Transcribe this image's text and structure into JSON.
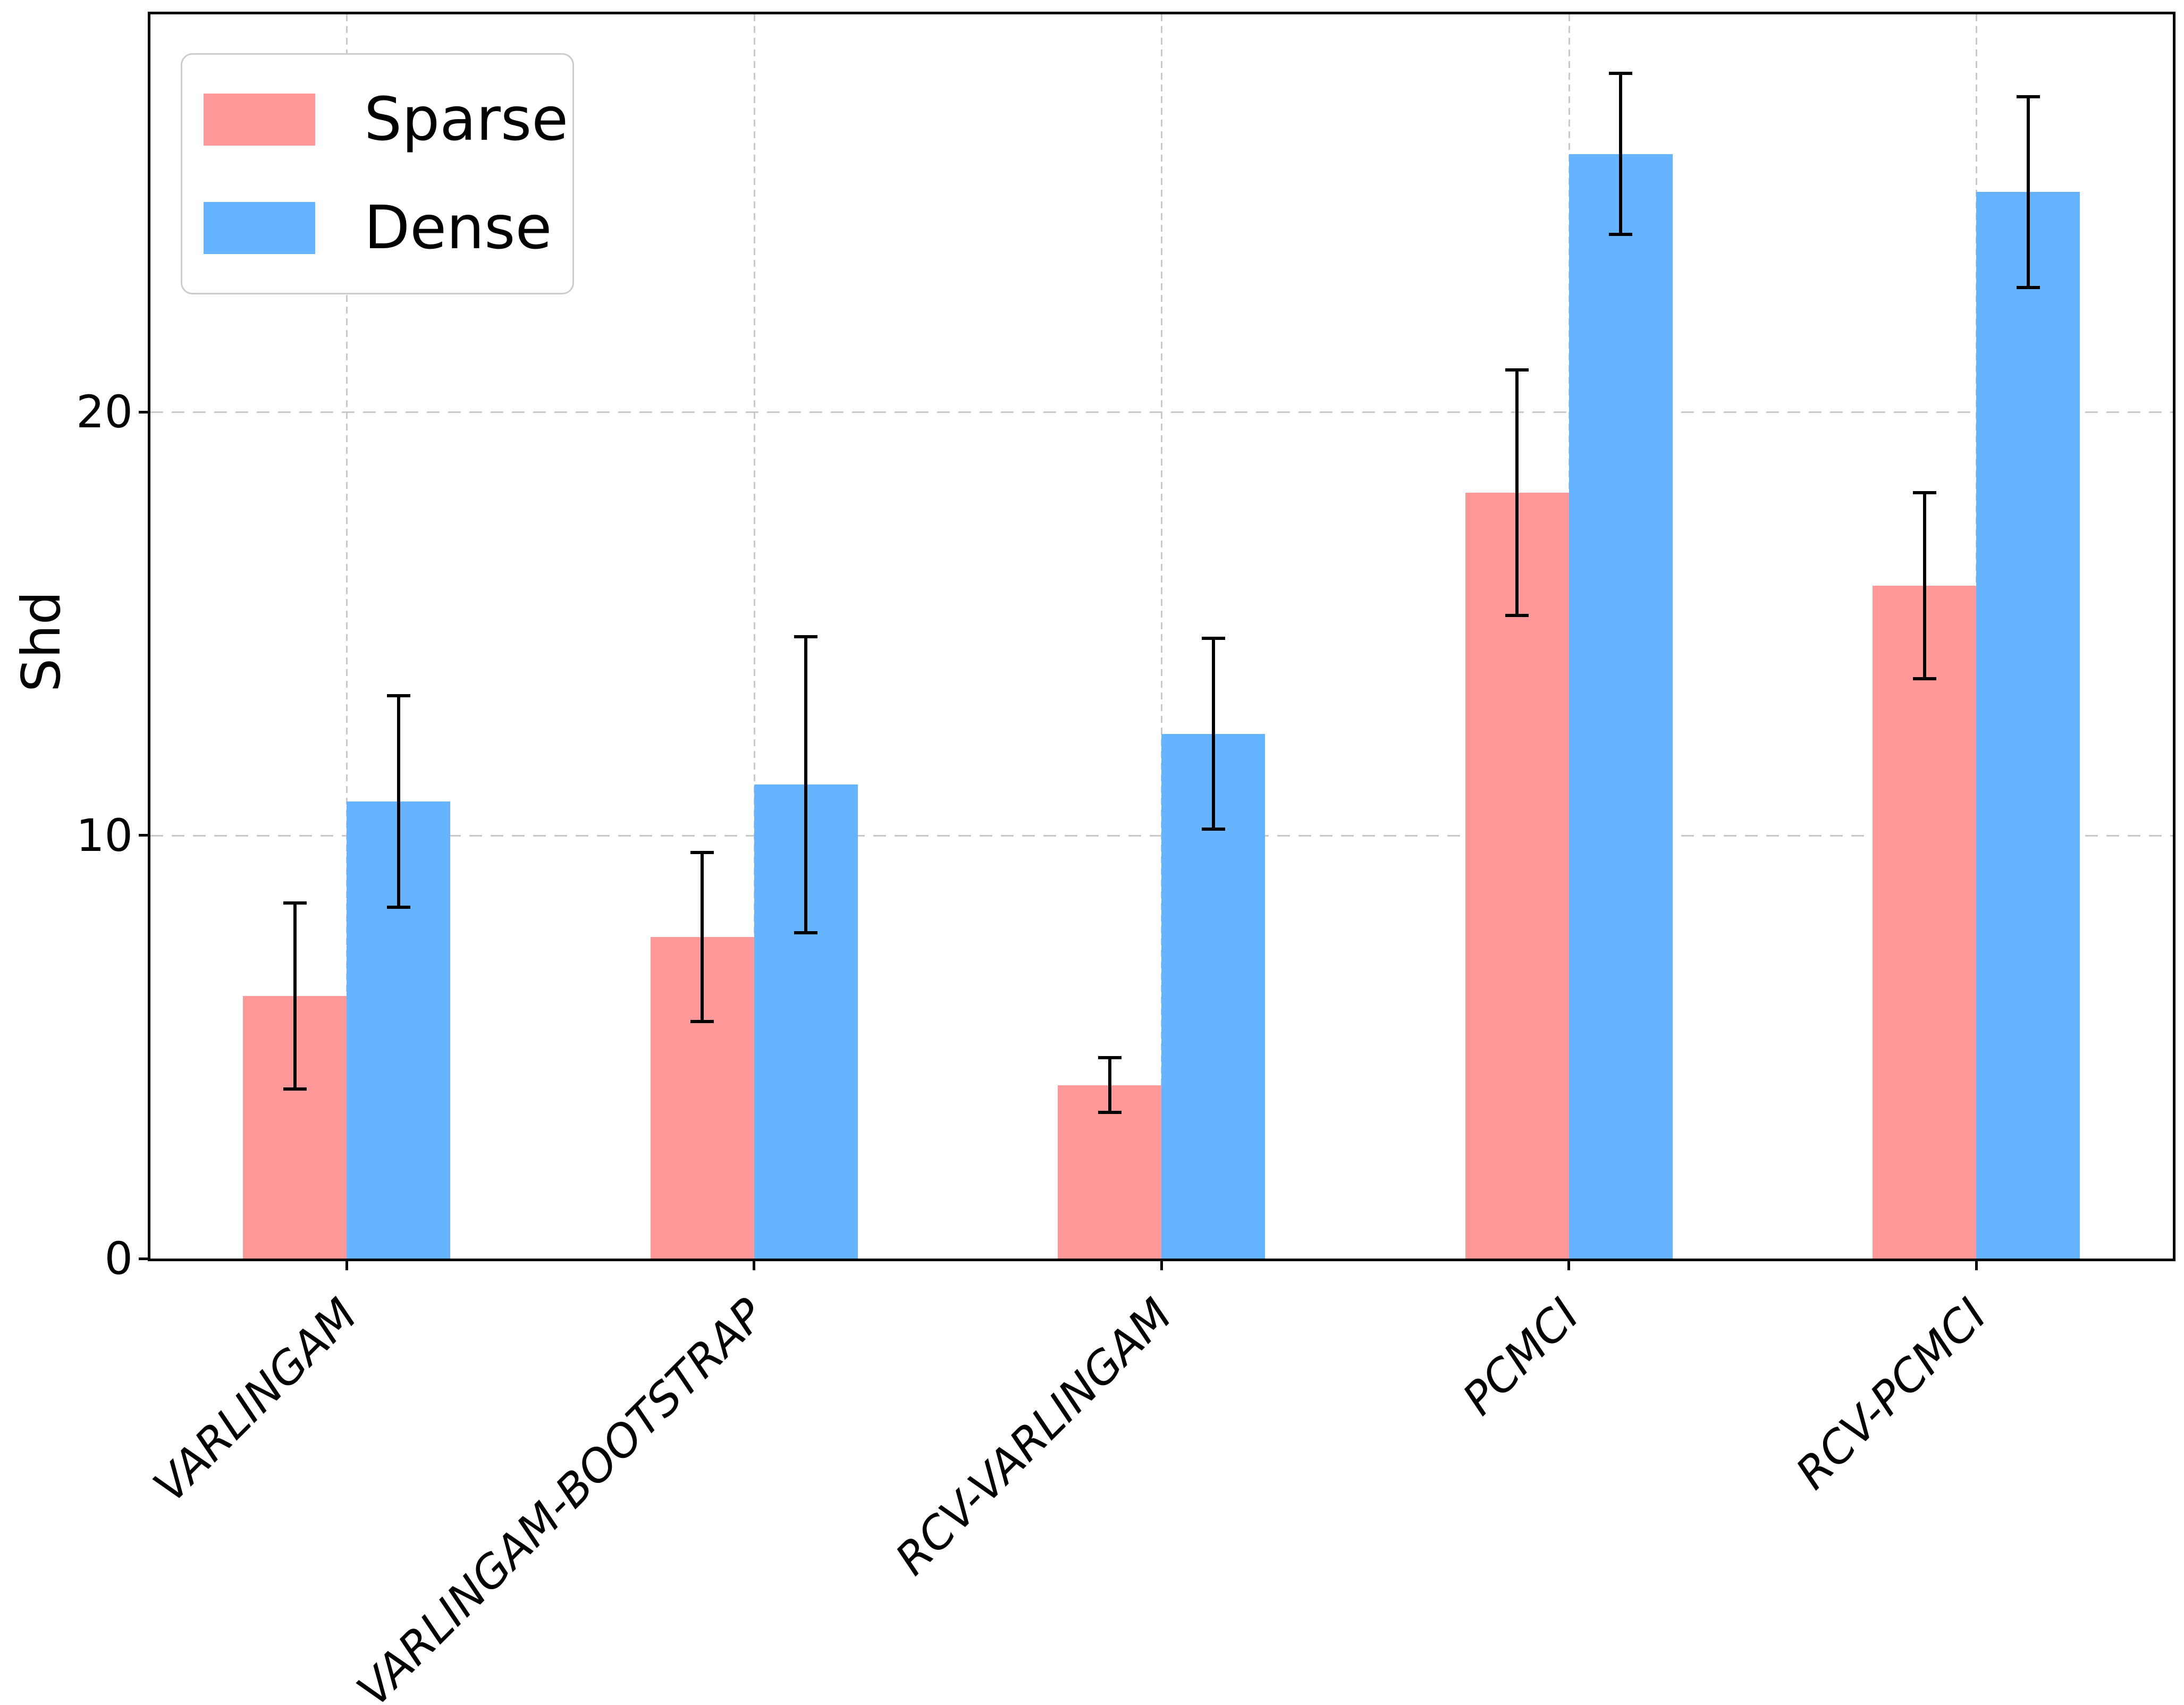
{
  "chart_data": {
    "type": "bar",
    "title": "",
    "xlabel": "",
    "ylabel": "Shd",
    "categories": [
      "VARLINGAM",
      "VARLINGAM-BOOTSTRAP",
      "RCV-VARLINGAM",
      "PCMCI",
      "RCV-PCMCI"
    ],
    "series": [
      {
        "name": "Sparse",
        "color": "#ff9999",
        "values": [
          6.2,
          7.6,
          4.1,
          18.1,
          15.9
        ],
        "errors": [
          2.2,
          2.0,
          0.65,
          2.9,
          2.2
        ]
      },
      {
        "name": "Dense",
        "color": "#66b3ff",
        "values": [
          10.8,
          11.2,
          12.4,
          26.1,
          25.2
        ],
        "errors": [
          2.5,
          3.5,
          2.25,
          1.9,
          2.25
        ]
      }
    ],
    "ylim": [
      0,
      29.4
    ],
    "yticks": [
      0,
      10,
      20
    ],
    "ytick_labels": [
      "0",
      "10",
      "20"
    ],
    "grid": true,
    "grid_style": "dashed",
    "legend_position": "upper left",
    "error_bar_color": "#000000",
    "background_color": "#ffffff"
  },
  "legend": {
    "items": [
      {
        "label": "Sparse",
        "color": "#ff9999"
      },
      {
        "label": "Dense",
        "color": "#66b3ff"
      }
    ]
  },
  "axes": {
    "ylabel": "Shd",
    "ytick_labels": [
      "0",
      "10",
      "20"
    ]
  }
}
